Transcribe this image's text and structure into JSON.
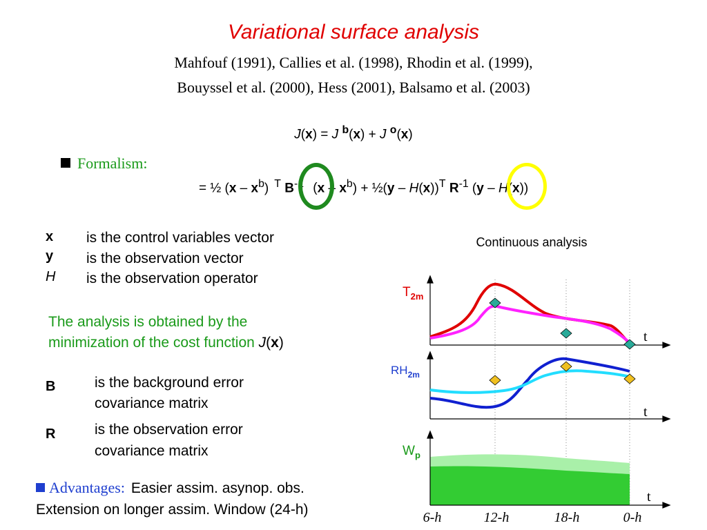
{
  "title": "Variational surface analysis",
  "references": [
    "Mahfouf (1991), Callies et al. (1998), Rhodin et al. (1999),",
    "Bouyssel et al. (2000), Hess (2001), Balsamo et al. (2003)"
  ],
  "formalism_label": "Formalism:",
  "equation_cost": {
    "J": "J",
    "x": "x",
    "eq": " = ",
    "b": "b",
    "o": "o",
    "plus": " + "
  },
  "equation_expanded": {
    "lead": "= ½ (",
    "x": "x",
    "minus": " – ",
    "xb": "x",
    "b": "b",
    "T": "T",
    "B": "B",
    "inv": "-1",
    "half2": " + ½(",
    "y": "y",
    "H": "H",
    "R": "R"
  },
  "definitions": [
    {
      "symbol": "x",
      "text": "is the control variables vector"
    },
    {
      "symbol": "y",
      "text": "is the observation vector"
    },
    {
      "symbol": "H",
      "text": "is the observation operator"
    }
  ],
  "minimization": {
    "line1": "The analysis is obtained by the",
    "line2": "minimization of the cost function ",
    "J": "J",
    "x": "x"
  },
  "matrices": [
    {
      "symbol": "B",
      "line1": "is the background error",
      "line2": "covariance matrix"
    },
    {
      "symbol": "R",
      "line1": "is the observation error",
      "line2": "covariance matrix"
    }
  ],
  "advantages": {
    "label": "Advantages:",
    "line1": "Easier assim. asynop. obs.",
    "line2": "Extension on longer assim. Window (24-h)"
  },
  "chart_data": {
    "type": "line",
    "title": "Continuous analysis",
    "panels": [
      {
        "ylabel_main": "T",
        "ylabel_sub": "2m",
        "axis_label": "t",
        "label_color": "#e00000"
      },
      {
        "ylabel_main": "RH",
        "ylabel_sub": "2m",
        "axis_label": "t",
        "label_color": "#1f3fcf"
      },
      {
        "ylabel_main": "W",
        "ylabel_sub": "p",
        "axis_label": "t",
        "label_color": "#1a9a1a"
      }
    ],
    "x_ticks": [
      "6-h",
      "12-h",
      "18-h",
      "0-h"
    ]
  },
  "colors": {
    "title": "#e00000",
    "green": "#1a9a1a",
    "blue": "#1f3fcf",
    "ring_B": "#1f8a1f",
    "ring_R": "#ffff00"
  }
}
